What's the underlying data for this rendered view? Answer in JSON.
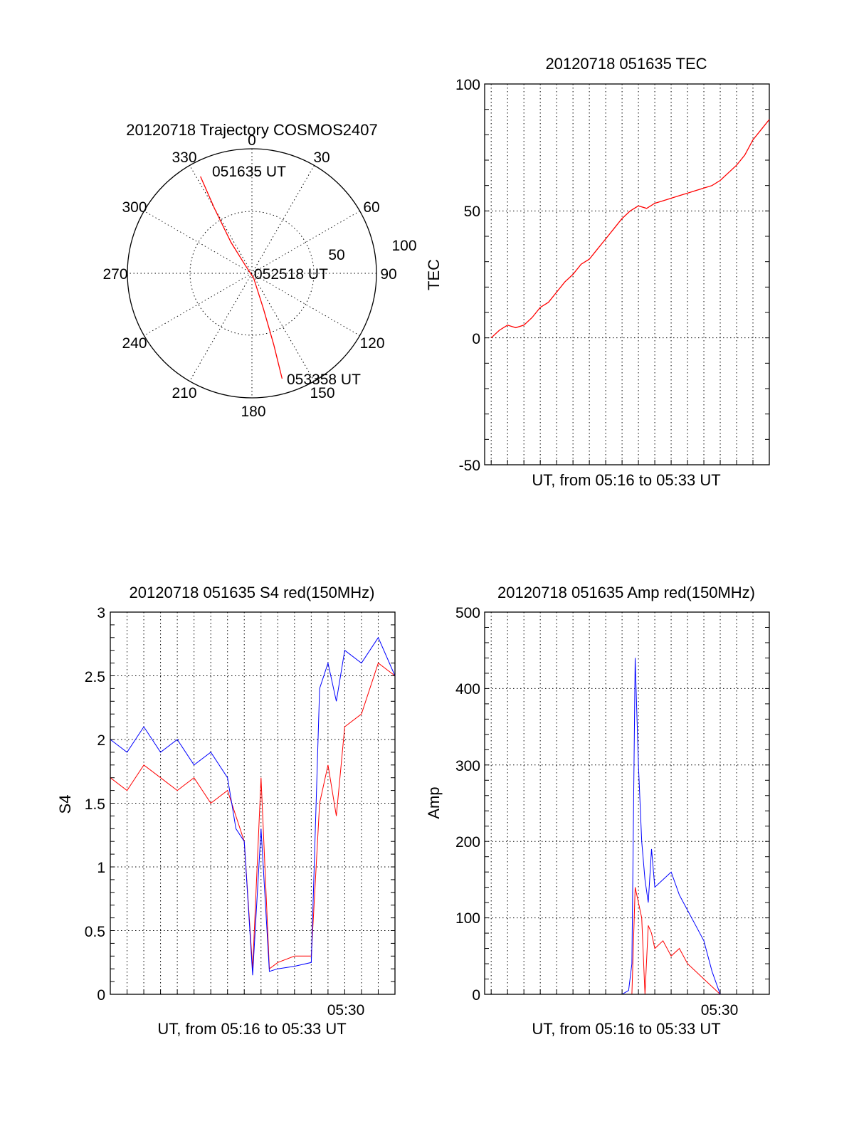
{
  "chart_data": [
    {
      "type": "polar",
      "title": "20120718 Trajectory COSMOS2407",
      "azimuth_labels": [
        "0",
        "30",
        "60",
        "90",
        "120",
        "150",
        "180",
        "210",
        "240",
        "270",
        "300",
        "330"
      ],
      "radial_labels": [
        "50",
        "100"
      ],
      "elevation_range": [
        0,
        100
      ],
      "colors": {
        "trajectory": "#ff0000"
      },
      "annotations": [
        {
          "text": "051635 UT",
          "az": 332,
          "el": 5
        },
        {
          "text": "052518 UT",
          "az": 0,
          "el": 100
        },
        {
          "text": "053358 UT",
          "az": 160,
          "el": 8
        }
      ],
      "trajectory": [
        {
          "az": 332,
          "el": 12
        },
        {
          "az": 330,
          "el": 40
        },
        {
          "az": 326,
          "el": 70
        },
        {
          "az": 320,
          "el": 92
        },
        {
          "az": 160,
          "el": 96
        },
        {
          "az": 162,
          "el": 70
        },
        {
          "az": 163,
          "el": 40
        },
        {
          "az": 164,
          "el": 12
        }
      ]
    },
    {
      "type": "line",
      "title": "20120718 051635 TEC",
      "xlabel": "UT, from 05:16 to 05:33 UT",
      "ylabel": "TEC",
      "ylim": [
        -50,
        100
      ],
      "yticks": [
        "100",
        "50",
        "0",
        "-50"
      ],
      "x_unit": "minutes after 05:16",
      "xlim": [
        -0.4,
        17
      ],
      "grid": true,
      "colors": {
        "series": "#ff0000"
      },
      "series": [
        {
          "x": [
            0,
            0.5,
            1,
            1.5,
            2,
            2.5,
            3,
            3.5,
            4,
            4.5,
            5,
            5.5,
            6,
            6.5,
            7,
            7.5,
            8,
            8.5,
            9,
            9.5,
            10,
            10.5,
            11,
            11.5,
            12,
            12.5,
            13,
            13.5,
            14,
            14.5,
            15,
            15.5,
            16,
            16.5,
            17
          ],
          "y": [
            0,
            3,
            5,
            4,
            5,
            8,
            12,
            14,
            18,
            22,
            25,
            29,
            31,
            35,
            39,
            43,
            47,
            50,
            52,
            51,
            53,
            54,
            55,
            56,
            57,
            58,
            59,
            60,
            62,
            65,
            68,
            72,
            78,
            82,
            86
          ]
        }
      ]
    },
    {
      "type": "line",
      "title": "20120718 051635 S4 red(150MHz)",
      "xlabel": "UT, from 05:16 to 05:33 UT",
      "ylabel": "S4",
      "ylim": [
        0,
        3
      ],
      "yticks": [
        "3",
        "2.5",
        "2",
        "1.5",
        "1",
        "0.5",
        "0"
      ],
      "xtick_labels": [
        "05:30"
      ],
      "x_unit": "minutes after 05:16",
      "xlim": [
        0,
        17
      ],
      "grid": true,
      "series_colors": [
        "#ff0000",
        "#0000ff"
      ],
      "series": [
        {
          "x": [
            0,
            1,
            2,
            3,
            4,
            5,
            6,
            7,
            8,
            8.5,
            9,
            9.5,
            10,
            11,
            12,
            12.5,
            13,
            13.5,
            14,
            15,
            16,
            17
          ],
          "y": [
            1.7,
            1.6,
            1.8,
            1.7,
            1.6,
            1.7,
            1.5,
            1.6,
            1.2,
            0.2,
            1.7,
            0.2,
            0.25,
            0.3,
            0.3,
            1.5,
            1.8,
            1.4,
            2.1,
            2.2,
            2.6,
            2.5
          ]
        },
        {
          "x": [
            0,
            1,
            2,
            3,
            4,
            5,
            6,
            7,
            7.5,
            8,
            8.5,
            9,
            9.5,
            10,
            11,
            12,
            12.5,
            13,
            13.5,
            14,
            15,
            16,
            17
          ],
          "y": [
            2.0,
            1.9,
            2.1,
            1.9,
            2.0,
            1.8,
            1.9,
            1.7,
            1.3,
            1.2,
            0.15,
            1.3,
            0.18,
            0.2,
            0.22,
            0.25,
            2.4,
            2.6,
            2.3,
            2.7,
            2.6,
            2.8,
            2.5
          ]
        }
      ]
    },
    {
      "type": "line",
      "title": "20120718 051635 Amp red(150MHz)",
      "xlabel": "UT, from 05:16 to 05:33 UT",
      "ylabel": "Amp",
      "ylim": [
        0,
        500
      ],
      "yticks": [
        "500",
        "400",
        "300",
        "200",
        "100",
        "0"
      ],
      "xtick_labels": [
        "05:30"
      ],
      "x_unit": "minutes after 05:16",
      "xlim": [
        -0.4,
        17
      ],
      "grid": true,
      "series_colors": [
        "#ff0000",
        "#0000ff"
      ],
      "series": [
        {
          "x": [
            0,
            8,
            8.6,
            8.8,
            9.0,
            9.2,
            9.4,
            9.6,
            9.8,
            10,
            10.5,
            11,
            11.5,
            12,
            12.5,
            13,
            13.5,
            14,
            17
          ],
          "y": [
            0,
            0,
            0,
            140,
            120,
            100,
            0,
            90,
            80,
            60,
            70,
            50,
            60,
            40,
            30,
            20,
            10,
            0,
            0
          ]
        },
        {
          "x": [
            0,
            8,
            8.4,
            8.6,
            8.8,
            9.0,
            9.2,
            9.4,
            9.6,
            9.8,
            10,
            10.5,
            11,
            11.5,
            12,
            12.5,
            13,
            13.5,
            14,
            17
          ],
          "y": [
            0,
            0,
            5,
            40,
            440,
            300,
            200,
            150,
            120,
            190,
            140,
            150,
            160,
            130,
            110,
            90,
            70,
            30,
            0,
            0
          ]
        }
      ]
    }
  ]
}
